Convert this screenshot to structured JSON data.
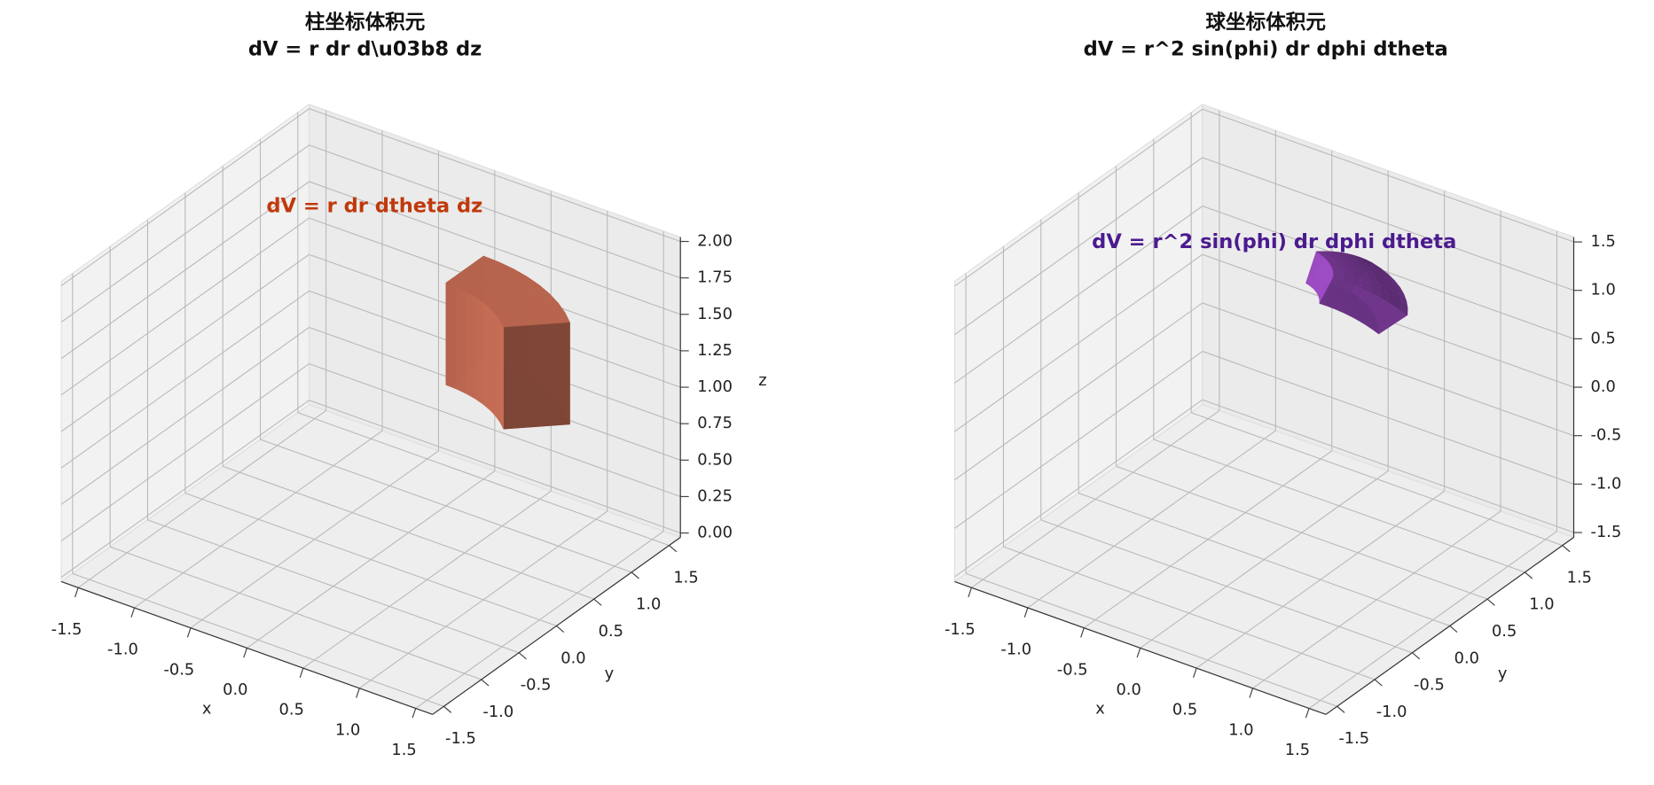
{
  "chart_data": [
    {
      "type": "cylindrical",
      "title": [
        "柱坐标体积元",
        "dV = r dr d\\u03b8 dz"
      ],
      "annotation": "dV = r dr dtheta dz",
      "annotation_color": "#c0390b",
      "color": "#e07a5f",
      "xlabel": "x",
      "ylabel": "y",
      "zlabel": "z",
      "xlim": [
        -1.65,
        1.65
      ],
      "ylim": [
        -1.65,
        1.65
      ],
      "zlim": [
        -0.03,
        2.03
      ],
      "xticks": [
        -1.5,
        {
          "value": -1,
          "label": "-1.0"
        },
        -0.5,
        {
          "value": 0,
          "label": "0.0"
        },
        0.5,
        {
          "value": 1,
          "label": "1.0"
        },
        1.5
      ],
      "yticks": [
        -1.5,
        {
          "value": -1,
          "label": "-1.0"
        },
        -0.5,
        {
          "value": 0,
          "label": "0.0"
        },
        0.5,
        {
          "value": 1,
          "label": "1.0"
        },
        1.5
      ],
      "zticks": [
        {
          "value": 0,
          "label": "0.00"
        },
        {
          "value": 0.25,
          "label": "0.25"
        },
        {
          "value": 0.5,
          "label": "0.50"
        },
        {
          "value": 0.75,
          "label": "0.75"
        },
        {
          "value": 1,
          "label": "1.00"
        },
        {
          "value": 1.25,
          "label": "1.25"
        },
        {
          "value": 1.5,
          "label": "1.50"
        },
        {
          "value": 1.75,
          "label": "1.75"
        },
        {
          "value": 2,
          "label": "2.00"
        }
      ],
      "element": {
        "r": [
          1,
          1.5
        ],
        "theta_deg": [
          45,
          90
        ],
        "z": [
          0.8,
          1.5
        ]
      }
    },
    {
      "type": "spherical",
      "title": [
        "球坐标体积元",
        "dV = r^2 sin(phi) dr dphi dtheta"
      ],
      "annotation": "dV = r^2 sin(phi) dr dphi dtheta",
      "annotation_color": "#4b1a8f",
      "color": "#a64fd0",
      "xlabel": "x",
      "ylabel": "y",
      "xlim": [
        -1.65,
        1.65
      ],
      "ylim": [
        -1.65,
        1.65
      ],
      "zlim": [
        -1.55,
        1.55
      ],
      "xticks": [
        -1.5,
        {
          "value": -1,
          "label": "-1.0"
        },
        -0.5,
        {
          "value": 0,
          "label": "0.0"
        },
        0.5,
        {
          "value": 1,
          "label": "1.0"
        },
        1.5
      ],
      "yticks": [
        -1.5,
        {
          "value": -1,
          "label": "-1.0"
        },
        -0.5,
        {
          "value": 0,
          "label": "0.0"
        },
        0.5,
        {
          "value": 1,
          "label": "1.0"
        },
        1.5
      ],
      "zticks": [
        -1.5,
        {
          "value": -1,
          "label": "-1.0"
        },
        -0.5,
        {
          "value": 0,
          "label": "0.0"
        },
        0.5,
        {
          "value": 1,
          "label": "1.0"
        },
        1.5
      ],
      "element": {
        "r": [
          1.2,
          1.5
        ],
        "phi_deg": [
          20,
          45
        ],
        "theta_deg": [
          30,
          75
        ]
      }
    }
  ]
}
